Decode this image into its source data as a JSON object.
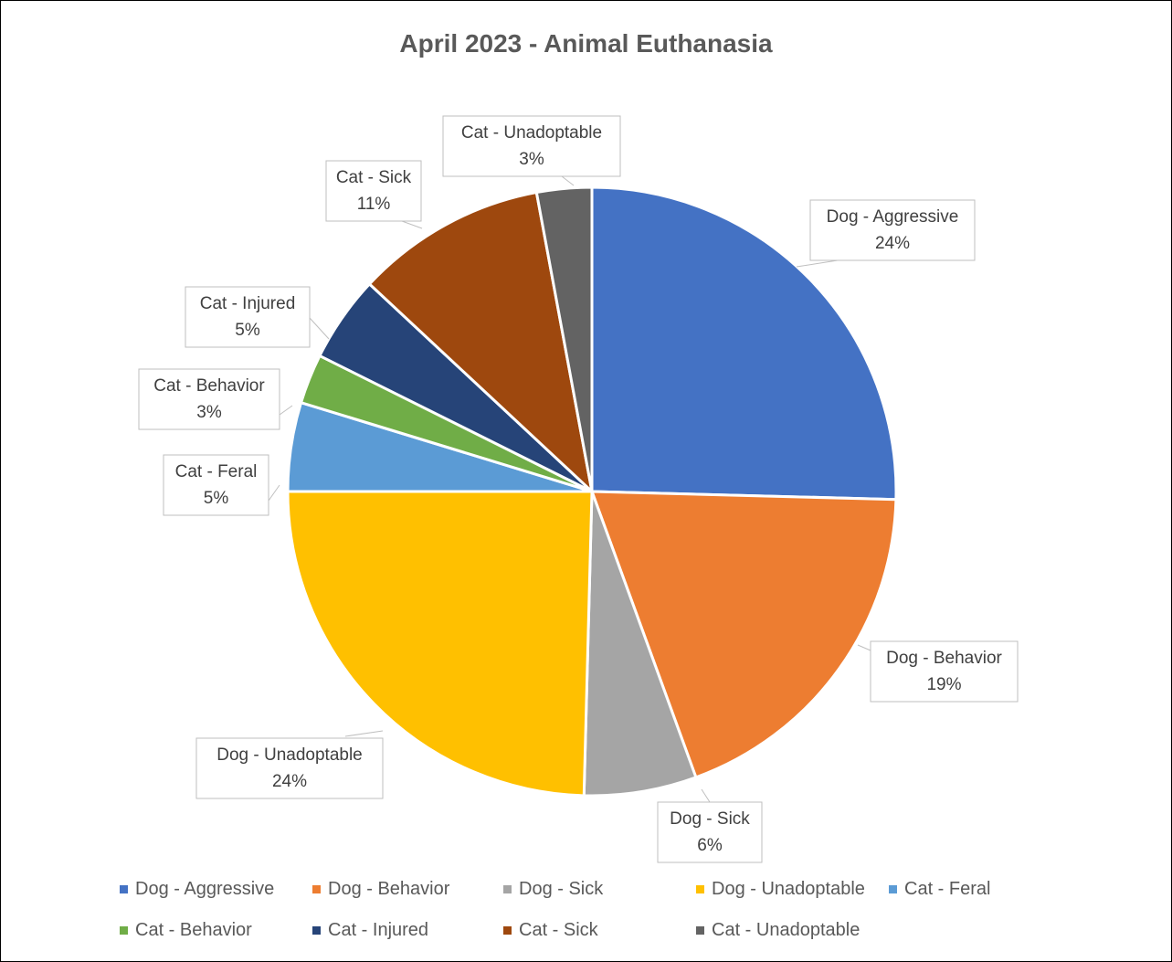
{
  "chart_data": {
    "type": "pie",
    "title": "April 2023 - Animal Euthanasia",
    "slices": [
      {
        "label": "Dog - Aggressive",
        "pct_label": "24%",
        "value": 24,
        "color": "#4472C4"
      },
      {
        "label": "Dog - Behavior",
        "pct_label": "19%",
        "value": 19,
        "color": "#ED7D31"
      },
      {
        "label": "Dog - Sick",
        "pct_label": "6%",
        "value": 6,
        "color": "#A5A5A5"
      },
      {
        "label": "Dog - Unadoptable",
        "pct_label": "24%",
        "value": 24,
        "color": "#FFC000"
      },
      {
        "label": "Cat - Feral",
        "pct_label": "5%",
        "value": 5,
        "color": "#5B9BD5"
      },
      {
        "label": "Cat - Behavior",
        "pct_label": "3%",
        "value": 3,
        "color": "#70AD47"
      },
      {
        "label": "Cat - Injured",
        "pct_label": "5%",
        "value": 5,
        "color": "#264478"
      },
      {
        "label": "Cat - Sick",
        "pct_label": "11%",
        "value": 11,
        "color": "#9E480E"
      },
      {
        "label": "Cat - Unadoptable",
        "pct_label": "3%",
        "value": 3,
        "color": "#636363"
      }
    ],
    "legend_position": "bottom"
  }
}
